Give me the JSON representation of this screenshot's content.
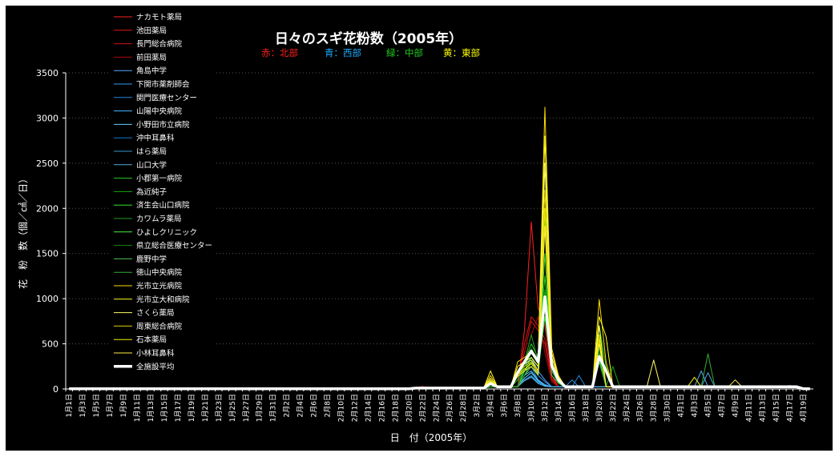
{
  "chart_data": {
    "type": "line",
    "title": "日々のスギ花粉数（2005年）",
    "region_notes": [
      {
        "text": "赤：北部",
        "color": "#ff2020"
      },
      {
        "text": "青：西部",
        "color": "#22aaff"
      },
      {
        "text": "緑：中部",
        "color": "#22cc22"
      },
      {
        "text": "黄：東部",
        "color": "#ffff00"
      }
    ],
    "xlabel": "日　付（2005年）",
    "ylabel": "花　粉　数（個／㎠／日）",
    "ylim": [
      0,
      3500
    ],
    "yticks": [
      0,
      500,
      1000,
      1500,
      2000,
      2500,
      3000,
      3500
    ],
    "grid": true,
    "legend_position": "top-left",
    "x_tick_labels": [
      "1月1日",
      "1月3日",
      "1月5日",
      "1月7日",
      "1月9日",
      "1月11日",
      "1月13日",
      "1月15日",
      "1月17日",
      "1月19日",
      "1月21日",
      "1月23日",
      "1月25日",
      "1月27日",
      "1月29日",
      "1月31日",
      "2月2日",
      "2月4日",
      "2月6日",
      "2月8日",
      "2月10日",
      "2月12日",
      "2月14日",
      "2月16日",
      "2月18日",
      "2月20日",
      "2月22日",
      "2月24日",
      "2月26日",
      "2月28日",
      "3月2日",
      "3月4日",
      "3月6日",
      "3月8日",
      "3月10日",
      "3月12日",
      "3月14日",
      "3月16日",
      "3月18日",
      "3月20日",
      "3月22日",
      "3月24日",
      "3月26日",
      "3月28日",
      "3月30日",
      "4月1日",
      "4月3日",
      "4月5日",
      "4月7日",
      "4月9日",
      "4月11日",
      "4月13日",
      "4月15日",
      "4月17日",
      "4月19日"
    ],
    "series": [
      {
        "name": "ナカモト薬局",
        "color": "#ff2020",
        "peaks": {
          "67": 650,
          "68": 1850,
          "69": 900,
          "70": 700,
          "71": 150
        }
      },
      {
        "name": "池田薬局",
        "color": "#e01818",
        "peaks": {
          "67": 500,
          "68": 800,
          "69": 700,
          "70": 550,
          "71": 120
        }
      },
      {
        "name": "長門総合病院",
        "color": "#cc1010",
        "peaks": {
          "66": 150,
          "67": 400,
          "68": 750,
          "69": 650,
          "70": 500,
          "71": 100
        }
      },
      {
        "name": "前田薬局",
        "color": "#aa0808",
        "peaks": {
          "52": 30,
          "67": 300,
          "68": 600,
          "69": 800,
          "70": 400,
          "71": 80
        }
      },
      {
        "name": "角島中学",
        "color": "#55aaff",
        "peaks": {
          "67": 250,
          "68": 350,
          "69": 200,
          "70": 100,
          "93": 200
        }
      },
      {
        "name": "下関市薬剤師会",
        "color": "#3399ee",
        "peaks": {
          "67": 200,
          "68": 300,
          "69": 150,
          "70": 80,
          "74": 100
        }
      },
      {
        "name": "関門医療センター",
        "color": "#2288dd",
        "peaks": {
          "67": 150,
          "68": 250,
          "69": 100,
          "70": 50,
          "75": 150
        }
      },
      {
        "name": "山陽中央病院",
        "color": "#44bbff",
        "peaks": {
          "67": 150,
          "68": 200,
          "69": 100,
          "70": 40
        }
      },
      {
        "name": "小野田市立病院",
        "color": "#66ccff",
        "peaks": {
          "67": 120,
          "68": 180,
          "69": 90,
          "70": 40
        }
      },
      {
        "name": "沖中耳鼻科",
        "color": "#1177cc",
        "peaks": {
          "67": 100,
          "68": 150,
          "69": 80,
          "70": 30,
          "106": 40
        }
      },
      {
        "name": "はら薬局",
        "color": "#3399cc",
        "peaks": {
          "67": 100,
          "68": 140,
          "69": 70,
          "70": 30
        }
      },
      {
        "name": "山口大学",
        "color": "#55aadd",
        "peaks": {
          "67": 90,
          "68": 130,
          "69": 60,
          "70": 30,
          "94": 180
        }
      },
      {
        "name": "小郡第一病院",
        "color": "#22cc22",
        "peaks": {
          "66": 100,
          "67": 300,
          "68": 500,
          "69": 350,
          "70": 1250,
          "71": 300,
          "72": 100,
          "78": 700,
          "79": 250
        }
      },
      {
        "name": "為近純子",
        "color": "#11aa11",
        "peaks": {
          "67": 250,
          "68": 400,
          "69": 300,
          "70": 1100,
          "71": 250,
          "72": 90,
          "78": 600,
          "80": 250
        }
      },
      {
        "name": "済生会山口病院",
        "color": "#33dd33",
        "peaks": {
          "67": 200,
          "68": 350,
          "69": 250,
          "70": 1500,
          "71": 250,
          "72": 80,
          "78": 500
        }
      },
      {
        "name": "カワムラ薬局",
        "color": "#229922",
        "peaks": {
          "67": 300,
          "68": 600,
          "69": 300,
          "70": 1900,
          "71": 300,
          "72": 100,
          "78": 400
        }
      },
      {
        "name": "ひよしクリニック",
        "color": "#44ee44",
        "peaks": {
          "67": 200,
          "68": 300,
          "69": 200,
          "70": 800,
          "71": 200,
          "72": 70,
          "78": 350
        }
      },
      {
        "name": "県立総合医療センター",
        "color": "#118811",
        "peaks": {
          "67": 250,
          "68": 450,
          "69": 300,
          "70": 2000,
          "71": 300,
          "72": 80,
          "78": 450
        }
      },
      {
        "name": "鹿野中学",
        "color": "#55bb55",
        "peaks": {
          "67": 150,
          "68": 250,
          "69": 150,
          "70": 900,
          "71": 150,
          "72": 60,
          "78": 300
        }
      },
      {
        "name": "徳山中央病院",
        "color": "#33aa33",
        "peaks": {
          "67": 150,
          "68": 300,
          "69": 200,
          "70": 1000,
          "71": 200,
          "72": 60,
          "78": 300,
          "94": 390
        }
      },
      {
        "name": "光市立光病院",
        "color": "#ffdd00",
        "peaks": {
          "62": 150,
          "66": 300,
          "67": 350,
          "68": 400,
          "69": 300,
          "70": 3120,
          "71": 450,
          "72": 150,
          "78": 990,
          "79": 300
        }
      },
      {
        "name": "光市立大和病院",
        "color": "#ffff22",
        "peaks": {
          "62": 200,
          "66": 250,
          "67": 300,
          "68": 350,
          "69": 250,
          "70": 2800,
          "71": 400,
          "72": 130,
          "78": 800,
          "79": 580
        }
      },
      {
        "name": "さくら薬局",
        "color": "#ffff66",
        "peaks": {
          "62": 120,
          "66": 200,
          "67": 280,
          "68": 320,
          "69": 200,
          "70": 2500,
          "71": 350,
          "72": 120,
          "78": 700,
          "86": 320
        }
      },
      {
        "name": "周東総合病院",
        "color": "#ddcc00",
        "peaks": {
          "62": 100,
          "66": 180,
          "67": 250,
          "68": 300,
          "69": 200,
          "70": 2200,
          "71": 300,
          "72": 100,
          "78": 600
        }
      },
      {
        "name": "石本薬局",
        "color": "#eeee00",
        "peaks": {
          "62": 90,
          "66": 160,
          "67": 220,
          "68": 280,
          "69": 180,
          "70": 2000,
          "71": 280,
          "72": 90,
          "78": 550,
          "92": 130
        }
      },
      {
        "name": "小林耳鼻科",
        "color": "#ffee44",
        "peaks": {
          "62": 80,
          "66": 140,
          "67": 200,
          "68": 250,
          "69": 160,
          "70": 1800,
          "71": 250,
          "72": 80,
          "78": 500,
          "98": 100
        }
      },
      {
        "name": "全施設平均",
        "color": "#ffffff",
        "width": 3.5,
        "peaks": {
          "62": 60,
          "66": 180,
          "67": 300,
          "68": 420,
          "69": 300,
          "70": 1020,
          "71": 260,
          "72": 100,
          "78": 360,
          "79": 200
        }
      }
    ]
  }
}
